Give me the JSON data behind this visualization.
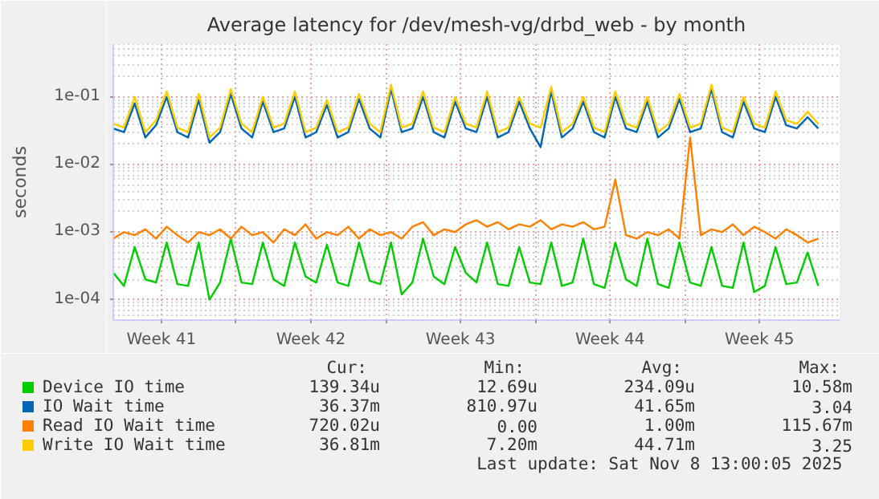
{
  "chart_data": {
    "type": "line",
    "title": "Average latency for /dev/mesh-vg/drbd_web - by month",
    "ylabel": "seconds",
    "log": "y",
    "grid": true,
    "legend": "bottom",
    "xlim": [
      "2025-10-07T06:00",
      "2025-11-10T06:00"
    ],
    "ylim": [
      5e-05,
      0.6
    ],
    "xticks": [
      {
        "value": "2025-10-09T12:00",
        "label": "Week 41"
      },
      {
        "value": "2025-10-13T00:00",
        "label": null
      },
      {
        "value": "2025-10-16T12:00",
        "label": "Week 42"
      },
      {
        "value": "2025-10-20T00:00",
        "label": null
      },
      {
        "value": "2025-10-23T12:00",
        "label": "Week 43"
      },
      {
        "value": "2025-10-27T00:00",
        "label": null
      },
      {
        "value": "2025-10-30T12:00",
        "label": "Week 44"
      },
      {
        "value": "2025-11-03T00:00",
        "label": null
      },
      {
        "value": "2025-11-06T12:00",
        "label": "Week 45"
      }
    ],
    "yticks": [
      {
        "value": 0.0001,
        "label": "1e-04"
      },
      {
        "value": 0.001,
        "label": "1e-03"
      },
      {
        "value": 0.01,
        "label": "1e-02"
      },
      {
        "value": 0.1,
        "label": "1e-01"
      }
    ],
    "x": [
      "2025-10-07T06:00",
      "2025-10-07T18:00",
      "2025-10-08T06:00",
      "2025-10-08T18:00",
      "2025-10-09T06:00",
      "2025-10-09T18:00",
      "2025-10-10T06:00",
      "2025-10-10T18:00",
      "2025-10-11T06:00",
      "2025-10-11T18:00",
      "2025-10-12T06:00",
      "2025-10-12T18:00",
      "2025-10-13T06:00",
      "2025-10-13T18:00",
      "2025-10-14T06:00",
      "2025-10-14T18:00",
      "2025-10-15T06:00",
      "2025-10-15T18:00",
      "2025-10-16T06:00",
      "2025-10-16T18:00",
      "2025-10-17T06:00",
      "2025-10-17T18:00",
      "2025-10-18T06:00",
      "2025-10-18T18:00",
      "2025-10-19T06:00",
      "2025-10-19T18:00",
      "2025-10-20T06:00",
      "2025-10-20T18:00",
      "2025-10-21T06:00",
      "2025-10-21T18:00",
      "2025-10-22T06:00",
      "2025-10-22T18:00",
      "2025-10-23T06:00",
      "2025-10-23T18:00",
      "2025-10-24T06:00",
      "2025-10-24T18:00",
      "2025-10-25T06:00",
      "2025-10-25T18:00",
      "2025-10-26T06:00",
      "2025-10-26T18:00",
      "2025-10-27T06:00",
      "2025-10-27T18:00",
      "2025-10-28T06:00",
      "2025-10-28T18:00",
      "2025-10-29T06:00",
      "2025-10-29T18:00",
      "2025-10-30T06:00",
      "2025-10-30T18:00",
      "2025-10-31T06:00",
      "2025-10-31T18:00",
      "2025-11-01T06:00",
      "2025-11-01T18:00",
      "2025-11-02T06:00",
      "2025-11-02T18:00",
      "2025-11-03T06:00",
      "2025-11-03T18:00",
      "2025-11-04T06:00",
      "2025-11-04T18:00",
      "2025-11-05T06:00",
      "2025-11-05T18:00",
      "2025-11-06T06:00",
      "2025-11-06T18:00",
      "2025-11-07T06:00",
      "2025-11-07T18:00",
      "2025-11-08T06:00",
      "2025-11-08T18:00",
      "2025-11-09T06:00"
    ],
    "series": [
      {
        "name": "Device IO time",
        "color": "#00cc00",
        "values": [
          0.00025,
          0.00016,
          0.0006,
          0.0002,
          0.00018,
          0.0007,
          0.00017,
          0.00016,
          0.0007,
          0.0001,
          0.00018,
          0.0008,
          0.00018,
          0.00017,
          0.0007,
          0.0002,
          0.00016,
          0.0007,
          0.00022,
          0.00018,
          0.00065,
          0.00018,
          0.00016,
          0.0007,
          0.00019,
          0.00017,
          0.0007,
          0.00012,
          0.00018,
          0.0008,
          0.00022,
          0.00017,
          0.0006,
          0.00025,
          0.00018,
          0.0007,
          0.00017,
          0.00016,
          0.0006,
          0.00018,
          0.00017,
          0.0007,
          0.00016,
          0.00018,
          0.0008,
          0.00017,
          0.00015,
          0.0007,
          0.0002,
          0.00016,
          0.0008,
          0.00017,
          0.00015,
          0.0007,
          0.00018,
          0.00016,
          0.0006,
          0.00016,
          0.00015,
          0.0007,
          0.00013,
          0.00016,
          0.0006,
          0.00017,
          0.00018,
          0.0005,
          0.00016
        ]
      },
      {
        "name": "IO Wait time",
        "color": "#0066b3",
        "values": [
          0.034,
          0.03,
          0.08,
          0.025,
          0.038,
          0.1,
          0.03,
          0.025,
          0.09,
          0.021,
          0.03,
          0.11,
          0.034,
          0.025,
          0.085,
          0.03,
          0.034,
          0.1,
          0.025,
          0.03,
          0.076,
          0.025,
          0.03,
          0.093,
          0.034,
          0.025,
          0.13,
          0.03,
          0.034,
          0.1,
          0.03,
          0.025,
          0.085,
          0.034,
          0.03,
          0.1,
          0.025,
          0.03,
          0.085,
          0.034,
          0.018,
          0.12,
          0.025,
          0.034,
          0.085,
          0.03,
          0.025,
          0.1,
          0.034,
          0.03,
          0.085,
          0.025,
          0.034,
          0.093,
          0.03,
          0.034,
          0.13,
          0.03,
          0.025,
          0.085,
          0.034,
          0.03,
          0.1,
          0.038,
          0.034,
          0.05,
          0.034
        ]
      },
      {
        "name": "Read IO Wait time",
        "color": "#ff8000",
        "values": [
          0.0008,
          0.001,
          0.0009,
          0.0011,
          0.0008,
          0.0012,
          0.0009,
          0.0007,
          0.001,
          0.0009,
          0.0011,
          0.0008,
          0.0012,
          0.0009,
          0.001,
          0.0007,
          0.0011,
          0.0009,
          0.0013,
          0.0008,
          0.001,
          0.0009,
          0.0012,
          0.0008,
          0.0011,
          0.0009,
          0.001,
          0.0008,
          0.0012,
          0.0014,
          0.0009,
          0.0011,
          0.001,
          0.0013,
          0.0015,
          0.0012,
          0.0014,
          0.0011,
          0.0013,
          0.0012,
          0.0015,
          0.0011,
          0.0013,
          0.0012,
          0.0014,
          0.0011,
          0.0012,
          0.006,
          0.0009,
          0.0008,
          0.001,
          0.0009,
          0.0011,
          0.0008,
          0.025,
          0.0009,
          0.0011,
          0.001,
          0.0013,
          0.0009,
          0.0012,
          0.001,
          0.0008,
          0.0011,
          0.0009,
          0.0007,
          0.0008
        ]
      },
      {
        "name": "Write IO Wait time",
        "color": "#ffcc00",
        "values": [
          0.04,
          0.035,
          0.1,
          0.03,
          0.045,
          0.12,
          0.035,
          0.03,
          0.11,
          0.025,
          0.035,
          0.13,
          0.04,
          0.03,
          0.1,
          0.035,
          0.04,
          0.12,
          0.03,
          0.035,
          0.09,
          0.03,
          0.035,
          0.11,
          0.04,
          0.03,
          0.15,
          0.035,
          0.04,
          0.12,
          0.035,
          0.03,
          0.1,
          0.04,
          0.035,
          0.12,
          0.03,
          0.035,
          0.1,
          0.04,
          0.035,
          0.14,
          0.03,
          0.04,
          0.1,
          0.035,
          0.03,
          0.12,
          0.04,
          0.035,
          0.1,
          0.03,
          0.04,
          0.11,
          0.035,
          0.04,
          0.15,
          0.035,
          0.03,
          0.1,
          0.04,
          0.035,
          0.12,
          0.045,
          0.04,
          0.06,
          0.04
        ]
      }
    ],
    "annotations": [
      "Cur:",
      "Min:",
      "Avg:",
      "Max:",
      "139.34u",
      "12.69u",
      "234.09u",
      "10.58m",
      "36.37m",
      "810.97u",
      "41.65m",
      "3.04",
      "720.02u",
      "0.00",
      "1.00m",
      "115.67m",
      "36.81m",
      "7.20m",
      "44.71m",
      "3.25",
      "Last update: Sat Nov  8 13:00:05 2025"
    ]
  }
}
